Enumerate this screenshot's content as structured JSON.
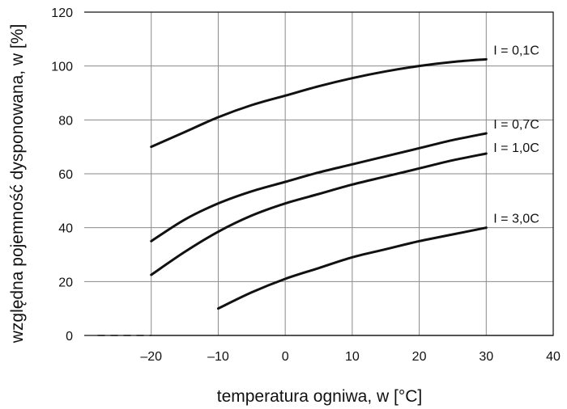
{
  "chart_data": {
    "type": "line",
    "xlabel": "temperatura ogniwa, w [°C]",
    "ylabel": "względna pojemność dysponowana, w [%]",
    "xlim": [
      -30,
      40
    ],
    "ylim": [
      0,
      120
    ],
    "x_ticks": [
      -20,
      -10,
      0,
      10,
      20,
      30,
      40
    ],
    "x_tick_labels": [
      "–20",
      "–10",
      "0",
      "10",
      "20",
      "30",
      "40"
    ],
    "y_ticks": [
      0,
      20,
      40,
      60,
      80,
      100,
      120
    ],
    "y_tick_labels": [
      "0",
      "20",
      "40",
      "60",
      "80",
      "100",
      "120"
    ],
    "grid": true,
    "baseline_dashed_x": [
      -28,
      -20
    ],
    "series": [
      {
        "name": "I = 0,1C",
        "x": [
          -20,
          -15,
          -10,
          -5,
          0,
          5,
          10,
          15,
          20,
          25,
          30
        ],
        "y": [
          70,
          75.5,
          81,
          85.5,
          89,
          92.5,
          95.5,
          98,
          100,
          101.5,
          102.5
        ]
      },
      {
        "name": "I = 0,7C",
        "x": [
          -20,
          -15,
          -10,
          -5,
          0,
          5,
          10,
          15,
          20,
          25,
          30
        ],
        "y": [
          35,
          43,
          49,
          53.5,
          57,
          60.5,
          63.5,
          66.5,
          69.5,
          72.5,
          75
        ]
      },
      {
        "name": "I = 1,0C",
        "x": [
          -20,
          -15,
          -10,
          -5,
          0,
          5,
          10,
          15,
          20,
          25,
          30
        ],
        "y": [
          22.5,
          31,
          38.5,
          44.5,
          49,
          52.5,
          56,
          59,
          62,
          65,
          67.5
        ]
      },
      {
        "name": "I = 3,0C",
        "x": [
          -10,
          -5,
          0,
          5,
          10,
          15,
          20,
          25,
          30
        ],
        "y": [
          10,
          16,
          21,
          25,
          29,
          32,
          35,
          37.5,
          40
        ]
      }
    ]
  }
}
